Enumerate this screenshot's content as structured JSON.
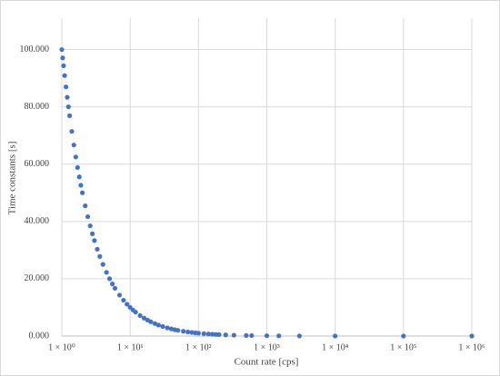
{
  "chart_data": {
    "type": "scatter",
    "xlabel": "Count rate [cps]",
    "ylabel": "Time constants [s]",
    "xscale": "log",
    "grid": true,
    "color": "#4472c4",
    "xlim": [
      1,
      1000000
    ],
    "xticks": [
      {
        "value": 1,
        "label": "1 × 10⁰"
      },
      {
        "value": 10,
        "label": "1 × 10¹"
      },
      {
        "value": 100,
        "label": "1 × 10²"
      },
      {
        "value": 1000,
        "label": "1 × 10³"
      },
      {
        "value": 10000,
        "label": "1 × 10⁴"
      },
      {
        "value": 100000,
        "label": "1 × 10⁵"
      },
      {
        "value": 1000000,
        "label": "1 × 10⁶"
      }
    ],
    "ylim": [
      0,
      110
    ],
    "yticks": [
      {
        "value": 0,
        "label": "0.000"
      },
      {
        "value": 20,
        "label": "20.000"
      },
      {
        "value": 40,
        "label": "40.000"
      },
      {
        "value": 60,
        "label": "60.000"
      },
      {
        "value": 80,
        "label": "80.000"
      },
      {
        "value": 100,
        "label": "100.000"
      }
    ],
    "x": [
      1,
      1.03,
      1.06,
      1.1,
      1.15,
      1.2,
      1.25,
      1.3,
      1.4,
      1.5,
      1.6,
      1.7,
      1.8,
      1.9,
      2,
      2.2,
      2.4,
      2.6,
      2.8,
      3,
      3.3,
      3.6,
      4,
      4.5,
      5,
      5.5,
      6,
      7,
      8,
      9,
      10,
      11,
      12,
      14,
      16,
      18,
      20,
      23,
      26,
      30,
      35,
      40,
      45,
      50,
      60,
      70,
      80,
      90,
      100,
      120,
      140,
      160,
      180,
      200,
      250,
      330,
      500,
      600,
      1000,
      1500,
      3000,
      10000,
      100000,
      1000000
    ],
    "values": [
      100,
      97.09,
      94.34,
      90.91,
      86.96,
      83.33,
      80,
      76.92,
      71.43,
      66.67,
      62.5,
      58.82,
      55.56,
      52.63,
      50,
      45.45,
      41.67,
      38.46,
      35.71,
      33.33,
      30.3,
      27.78,
      25,
      22.22,
      20,
      18.18,
      16.67,
      14.29,
      12.5,
      11.11,
      10,
      9.09,
      8.33,
      7.14,
      6.25,
      5.56,
      5,
      4.35,
      3.85,
      3.33,
      2.86,
      2.5,
      2.22,
      2,
      1.67,
      1.43,
      1.25,
      1.11,
      1,
      0.83,
      0.71,
      0.63,
      0.56,
      0.5,
      0.4,
      0.3,
      0.2,
      0.17,
      0.1,
      0.07,
      0.03,
      0.01,
      0,
      0
    ]
  }
}
